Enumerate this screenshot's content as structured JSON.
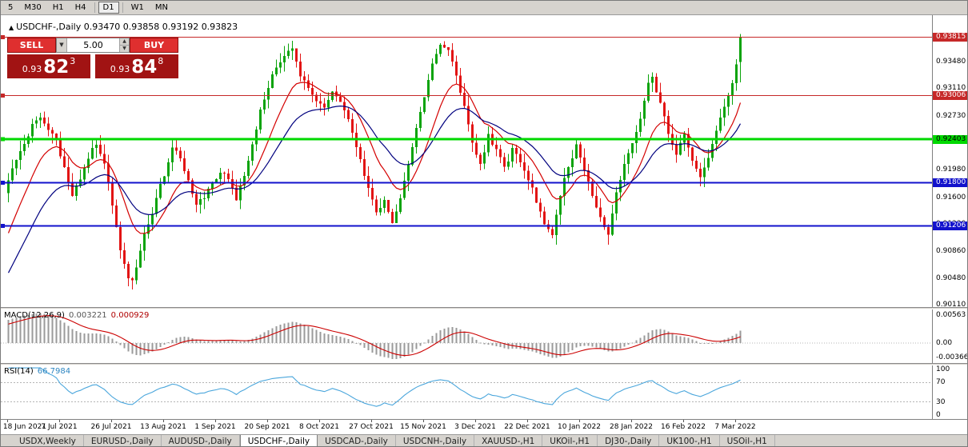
{
  "toolbar": {
    "timeframes": [
      "5",
      "M30",
      "H1",
      "H4",
      "D1",
      "W1",
      "MN"
    ],
    "active": "D1"
  },
  "chart": {
    "marker": "▲",
    "title": "USDCHF-,Daily 0.93470 0.93858 0.93192 0.93823"
  },
  "trade_panel": {
    "sell_label": "SELL",
    "buy_label": "BUY",
    "lot": "5.00",
    "sell_price": {
      "prefix": "0.93",
      "big": "82",
      "sup": "3"
    },
    "buy_price": {
      "prefix": "0.93",
      "big": "84",
      "sup": "8"
    }
  },
  "macd": {
    "label": "MACD(12,26,9)",
    "value": "0.003221",
    "signal": "0.000929",
    "axis_top": "0.00563",
    "axis_zero": "0.00",
    "axis_bottom": "-0.00366"
  },
  "rsi": {
    "label": "RSI(14)",
    "value": "66.7984",
    "axis": [
      100,
      70,
      30,
      0
    ],
    "guide_levels": [
      70,
      30
    ]
  },
  "time_axis": {
    "labels": [
      "18 Jun 2021",
      "7 Jul 2021",
      "26 Jul 2021",
      "13 Aug 2021",
      "1 Sep 2021",
      "20 Sep 2021",
      "8 Oct 2021",
      "27 Oct 2021",
      "15 Nov 2021",
      "3 Dec 2021",
      "22 Dec 2021",
      "10 Jan 2022",
      "28 Jan 2022",
      "16 Feb 2022",
      "7 Mar 2022"
    ],
    "candles_per_label": 13
  },
  "tabs": [
    "USDX,Weekly",
    "EURUSD-,Daily",
    "AUDUSD-,Daily",
    "USDCHF-,Daily",
    "USDCAD-,Daily",
    "USDCNH-,Daily",
    "XAUUSD-,H1",
    "UKOil-,H1",
    "DJ30-,Daily",
    "UK100-,H1",
    "USOil-,H1"
  ],
  "active_tab": "USDCHF-,Daily",
  "colors": {
    "candle_up": "#0aa30a",
    "candle_down": "#e21414",
    "ma_fast": "#d40000",
    "ma_slow": "#00007f",
    "macd_hist": "#9a9a9a",
    "macd_signal": "#cc0000",
    "rsi_line": "#4aa6dc",
    "guide": "#b4b4b4"
  },
  "chart_data": {
    "type": "candlestick",
    "symbol": "USDCHF-",
    "period": "Daily",
    "current_ohlc": {
      "open": 0.9347,
      "high": 0.93858,
      "low": 0.93192,
      "close": 0.93823
    },
    "price_range": {
      "top": 0.9412,
      "bottom": 0.9008
    },
    "y_ticks": [
      0.9348,
      0.9311,
      0.9273,
      0.9236,
      0.9198,
      0.916,
      0.9123,
      0.9086,
      0.9048,
      0.9011
    ],
    "levels": [
      {
        "price": 0.93815,
        "label": "0.93815",
        "color": "#c62828",
        "width": 1,
        "text": "#ffffff"
      },
      {
        "price": 0.93006,
        "label": "0.93006",
        "color": "#c62828",
        "width": 1,
        "text": "#ffffff"
      },
      {
        "price": 0.92403,
        "label": "0.92403",
        "color": "#00d800",
        "width": 3,
        "text": "#000000"
      },
      {
        "price": 0.918,
        "label": "0.91800",
        "color": "#1212cc",
        "width": 2,
        "text": "#ffffff"
      },
      {
        "price": 0.91206,
        "label": "0.91206",
        "color": "#1212cc",
        "width": 2,
        "text": "#ffffff"
      }
    ],
    "candle_count": 184,
    "noise": 0.0007,
    "wick": 0.0014,
    "seed": 11,
    "warmup_pivots": [
      [
        -40,
        0.889
      ],
      [
        -20,
        0.897
      ],
      [
        -8,
        0.906
      ],
      [
        -1,
        0.9168
      ]
    ],
    "price_path_pivots": [
      [
        0,
        0.9185
      ],
      [
        2,
        0.921
      ],
      [
        4,
        0.9232
      ],
      [
        6,
        0.9262
      ],
      [
        8,
        0.927
      ],
      [
        10,
        0.9255
      ],
      [
        12,
        0.924
      ],
      [
        14,
        0.92
      ],
      [
        16,
        0.9165
      ],
      [
        18,
        0.9185
      ],
      [
        20,
        0.9215
      ],
      [
        22,
        0.9235
      ],
      [
        24,
        0.921
      ],
      [
        26,
        0.915
      ],
      [
        27,
        0.912
      ],
      [
        28,
        0.9085
      ],
      [
        30,
        0.905
      ],
      [
        31,
        0.9045
      ],
      [
        33,
        0.9085
      ],
      [
        34,
        0.911
      ],
      [
        36,
        0.914
      ],
      [
        38,
        0.9175
      ],
      [
        40,
        0.921
      ],
      [
        41,
        0.923
      ],
      [
        43,
        0.9215
      ],
      [
        45,
        0.918
      ],
      [
        47,
        0.9148
      ],
      [
        49,
        0.9162
      ],
      [
        51,
        0.918
      ],
      [
        53,
        0.9195
      ],
      [
        55,
        0.9185
      ],
      [
        57,
        0.9155
      ],
      [
        60,
        0.921
      ],
      [
        63,
        0.928
      ],
      [
        66,
        0.933
      ],
      [
        69,
        0.9355
      ],
      [
        71,
        0.9365
      ],
      [
        73,
        0.933
      ],
      [
        76,
        0.93
      ],
      [
        79,
        0.9285
      ],
      [
        81,
        0.931
      ],
      [
        83,
        0.9295
      ],
      [
        86,
        0.925
      ],
      [
        88,
        0.921
      ],
      [
        90,
        0.917
      ],
      [
        92,
        0.914
      ],
      [
        94,
        0.9155
      ],
      [
        96,
        0.9125
      ],
      [
        98,
        0.916
      ],
      [
        100,
        0.9205
      ],
      [
        102,
        0.9255
      ],
      [
        104,
        0.93
      ],
      [
        106,
        0.9345
      ],
      [
        108,
        0.937
      ],
      [
        110,
        0.9362
      ],
      [
        112,
        0.933
      ],
      [
        114,
        0.9285
      ],
      [
        116,
        0.9235
      ],
      [
        118,
        0.9205
      ],
      [
        120,
        0.9245
      ],
      [
        122,
        0.9225
      ],
      [
        124,
        0.92
      ],
      [
        126,
        0.9225
      ],
      [
        128,
        0.921
      ],
      [
        130,
        0.9185
      ],
      [
        132,
        0.9155
      ],
      [
        134,
        0.9125
      ],
      [
        136,
        0.9105
      ],
      [
        138,
        0.9165
      ],
      [
        140,
        0.9205
      ],
      [
        142,
        0.923
      ],
      [
        144,
        0.92
      ],
      [
        146,
        0.9165
      ],
      [
        148,
        0.9132
      ],
      [
        150,
        0.911
      ],
      [
        152,
        0.9168
      ],
      [
        154,
        0.9205
      ],
      [
        156,
        0.9235
      ],
      [
        158,
        0.927
      ],
      [
        160,
        0.9315
      ],
      [
        161,
        0.9325
      ],
      [
        163,
        0.929
      ],
      [
        165,
        0.925
      ],
      [
        167,
        0.9222
      ],
      [
        169,
        0.9247
      ],
      [
        171,
        0.921
      ],
      [
        173,
        0.9185
      ],
      [
        175,
        0.9215
      ],
      [
        177,
        0.925
      ],
      [
        179,
        0.9288
      ],
      [
        181,
        0.9315
      ],
      [
        182,
        0.9347
      ],
      [
        183,
        0.93823
      ]
    ],
    "ma_periods": {
      "fast": 12,
      "slow": 26
    },
    "macd_params": [
      12,
      26,
      9
    ],
    "rsi_period": 14
  }
}
